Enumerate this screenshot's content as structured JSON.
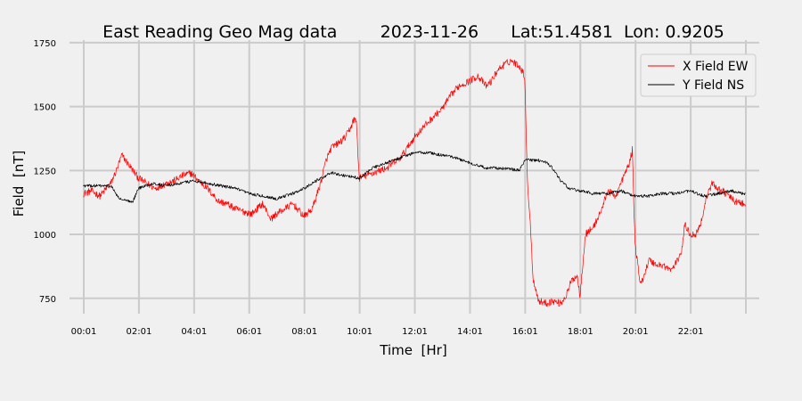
{
  "chart_data": {
    "type": "line",
    "title": "East Reading Geo Mag data        2023-11-26      Lat:51.4581  Lon: 0.9205",
    "xlabel": "Time  [Hr]",
    "ylabel": "Field  [nT]",
    "xlim": [
      -0.5,
      24.5
    ],
    "ylim": [
      690,
      1760
    ],
    "grid": true,
    "legend_position": "top-right",
    "x_ticks": [
      0.0167,
      2.0167,
      4.0167,
      6.0167,
      8.0167,
      10.0167,
      12.0167,
      14.0167,
      16.0167,
      18.0167,
      20.0167,
      22.0167,
      24.0167
    ],
    "x_tick_labels": [
      "00:01",
      "02:01",
      "04:01",
      "06:01",
      "08:01",
      "10:01",
      "12:01",
      "14:01",
      "16:01",
      "18:01",
      "20:01",
      "22:01",
      ""
    ],
    "y_ticks": [
      750,
      1000,
      1250,
      1500,
      1750
    ],
    "y_tick_labels": [
      "750",
      "1000",
      "1250",
      "1500",
      "1750"
    ],
    "series": [
      {
        "name": "X Field EW",
        "color": "#ff0000",
        "x": [
          0.0,
          0.3,
          0.6,
          1.0,
          1.2,
          1.4,
          1.6,
          2.0,
          2.3,
          2.6,
          3.0,
          3.3,
          3.6,
          3.9,
          4.0,
          4.2,
          4.5,
          4.9,
          5.2,
          5.5,
          5.8,
          6.1,
          6.5,
          6.8,
          7.0,
          7.3,
          7.6,
          8.0,
          8.3,
          8.6,
          8.8,
          9.0,
          9.3,
          9.5,
          9.7,
          9.8,
          9.9,
          10.0,
          10.5,
          11.0,
          11.5,
          12.0,
          12.5,
          13.0,
          13.3,
          13.6,
          14.0,
          14.3,
          14.6,
          14.8,
          15.0,
          15.2,
          15.5,
          15.8,
          16.0,
          16.1,
          16.2,
          16.3,
          16.5,
          16.8,
          17.0,
          17.3,
          17.5,
          17.7,
          17.9,
          18.0,
          18.2,
          18.5,
          18.8,
          19.0,
          19.3,
          19.6,
          19.8,
          19.9,
          20.0,
          20.2,
          20.5,
          20.8,
          21.0,
          21.3,
          21.5,
          21.7,
          21.8,
          22.0,
          22.2,
          22.4,
          22.6,
          22.8,
          23.0,
          23.3,
          23.6,
          23.9,
          24.0
        ],
        "y": [
          1160,
          1170,
          1150,
          1200,
          1250,
          1310,
          1280,
          1220,
          1200,
          1180,
          1200,
          1210,
          1230,
          1240,
          1230,
          1210,
          1180,
          1130,
          1120,
          1100,
          1090,
          1080,
          1120,
          1060,
          1080,
          1100,
          1120,
          1070,
          1100,
          1200,
          1290,
          1340,
          1360,
          1380,
          1420,
          1450,
          1440,
          1220,
          1240,
          1260,
          1300,
          1380,
          1440,
          1490,
          1540,
          1580,
          1600,
          1620,
          1580,
          1600,
          1640,
          1660,
          1680,
          1660,
          1620,
          1200,
          1050,
          830,
          740,
          730,
          740,
          730,
          760,
          820,
          840,
          760,
          1000,
          1030,
          1100,
          1170,
          1150,
          1230,
          1280,
          1330,
          960,
          800,
          900,
          880,
          880,
          860,
          890,
          940,
          1040,
          1000,
          1000,
          1050,
          1150,
          1200,
          1180,
          1160,
          1130,
          1120,
          1110
        ],
        "y_error": 0
      },
      {
        "name": "Y Field NS",
        "color": "#000000",
        "x": [
          0.0,
          0.5,
          1.0,
          1.3,
          1.6,
          1.8,
          2.0,
          2.5,
          3.0,
          3.5,
          4.0,
          4.5,
          5.0,
          5.5,
          6.0,
          6.5,
          7.0,
          7.3,
          7.6,
          8.0,
          8.3,
          8.6,
          9.0,
          9.5,
          10.0,
          10.5,
          11.0,
          11.5,
          12.0,
          12.5,
          13.0,
          13.5,
          14.0,
          14.3,
          14.6,
          15.0,
          15.5,
          15.8,
          16.0,
          16.5,
          16.8,
          17.0,
          17.3,
          17.6,
          18.0,
          18.5,
          19.0,
          19.5,
          20.0,
          20.5,
          21.0,
          21.5,
          22.0,
          22.5,
          23.0,
          23.5,
          23.9,
          24.0
        ],
        "y": [
          1190,
          1190,
          1190,
          1140,
          1130,
          1130,
          1180,
          1200,
          1190,
          1200,
          1210,
          1200,
          1190,
          1180,
          1160,
          1150,
          1140,
          1150,
          1160,
          1180,
          1200,
          1220,
          1240,
          1230,
          1220,
          1260,
          1280,
          1300,
          1320,
          1320,
          1310,
          1300,
          1280,
          1270,
          1260,
          1260,
          1255,
          1250,
          1290,
          1290,
          1280,
          1260,
          1210,
          1180,
          1170,
          1160,
          1160,
          1170,
          1150,
          1150,
          1160,
          1160,
          1170,
          1150,
          1160,
          1170,
          1160,
          1160
        ]
      }
    ]
  }
}
